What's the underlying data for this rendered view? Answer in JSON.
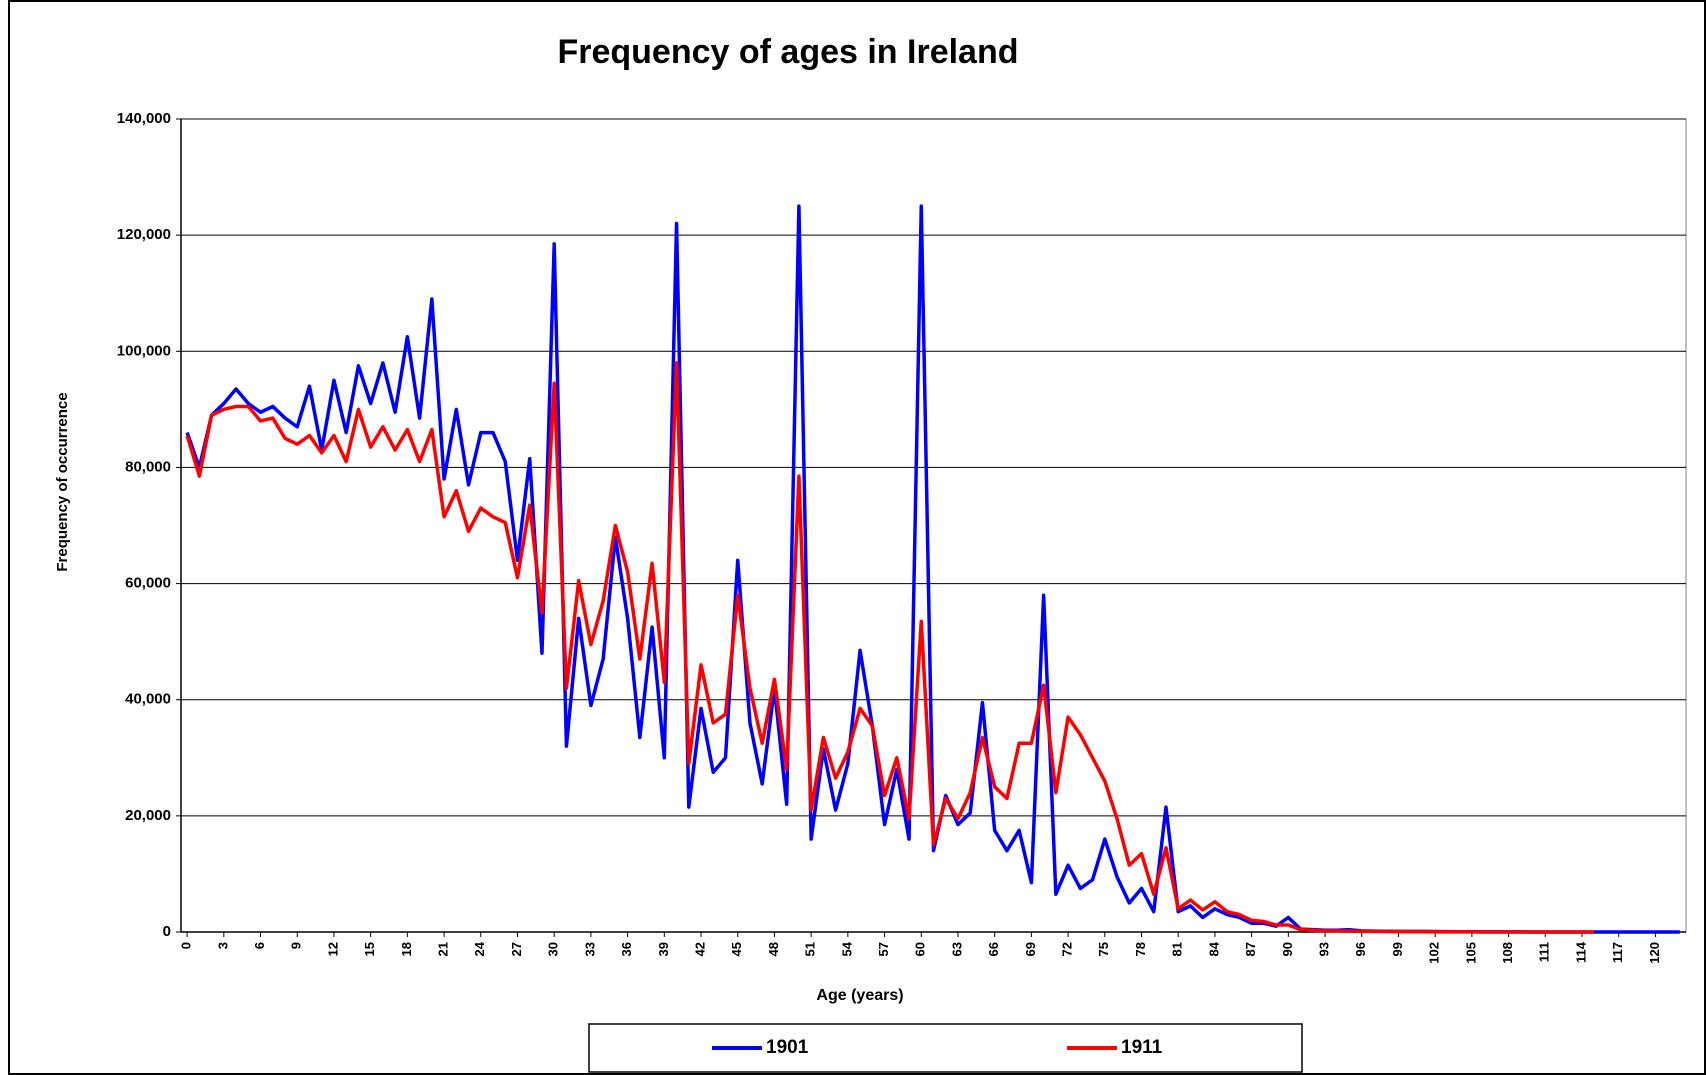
{
  "chart_data": {
    "type": "line",
    "title": "Frequency of ages in Ireland",
    "x_label": "Age (years)",
    "y_label": "Frequency of occurrence",
    "x": [
      0,
      1,
      2,
      3,
      4,
      5,
      6,
      7,
      8,
      9,
      10,
      11,
      12,
      13,
      14,
      15,
      16,
      17,
      18,
      19,
      20,
      21,
      22,
      23,
      24,
      25,
      26,
      27,
      28,
      29,
      30,
      31,
      32,
      33,
      34,
      35,
      36,
      37,
      38,
      39,
      40,
      41,
      42,
      43,
      44,
      45,
      46,
      47,
      48,
      49,
      50,
      51,
      52,
      53,
      54,
      55,
      56,
      57,
      58,
      59,
      60,
      61,
      62,
      63,
      64,
      65,
      66,
      67,
      68,
      69,
      70,
      71,
      72,
      73,
      74,
      75,
      76,
      77,
      78,
      79,
      80,
      81,
      82,
      83,
      84,
      85,
      86,
      87,
      88,
      89,
      90,
      91,
      92,
      93,
      94,
      95,
      96,
      97,
      98,
      99,
      100,
      101,
      102,
      103,
      104,
      105,
      106,
      107,
      108,
      109,
      110,
      111,
      112,
      113,
      114,
      115,
      116,
      117,
      118,
      119,
      120,
      121,
      122
    ],
    "xlim": [
      -0.5,
      122.5
    ],
    "xticks": [
      0,
      3,
      6,
      9,
      12,
      15,
      18,
      21,
      24,
      27,
      30,
      33,
      36,
      39,
      42,
      45,
      48,
      51,
      54,
      57,
      60,
      63,
      66,
      69,
      72,
      75,
      78,
      81,
      84,
      87,
      90,
      93,
      96,
      99,
      102,
      105,
      108,
      111,
      114,
      117,
      120
    ],
    "ylim": [
      0,
      140000
    ],
    "yticks": [
      0,
      {
        "value": 20000,
        "label": "20,000"
      },
      {
        "value": 40000,
        "label": "40,000"
      },
      {
        "value": 60000,
        "label": "60,000"
      },
      {
        "value": 80000,
        "label": "80,000"
      },
      {
        "value": 100000,
        "label": "100,000"
      },
      {
        "value": 120000,
        "label": "120,000"
      },
      {
        "value": 140000,
        "label": "140,000"
      }
    ],
    "grid": true,
    "legend": "bottom",
    "series": [
      {
        "name": "1901",
        "color": "#0000ff",
        "values": [
          86000,
          80000,
          89000,
          91000,
          93500,
          91000,
          89500,
          90500,
          88500,
          87000,
          94000,
          83000,
          95000,
          86000,
          97500,
          91000,
          98000,
          89500,
          102500,
          88500,
          109000,
          78000,
          90000,
          77000,
          86000,
          86000,
          81000,
          64000,
          81500,
          48000,
          118500,
          32000,
          54000,
          39000,
          47000,
          68000,
          54000,
          33500,
          52500,
          30000,
          122000,
          21500,
          38500,
          27500,
          30000,
          64000,
          36000,
          25500,
          42000,
          22000,
          125000,
          16000,
          31500,
          21000,
          29000,
          48500,
          35500,
          18500,
          28000,
          16000,
          125000,
          14000,
          23500,
          18500,
          20500,
          39500,
          17500,
          14000,
          17500,
          8500,
          58000,
          6500,
          11500,
          7500,
          9000,
          16000,
          9500,
          5000,
          7500,
          3500,
          21500,
          3500,
          4500,
          2500,
          4000,
          3000,
          2500,
          1500,
          1500,
          1000,
          2500,
          500,
          400,
          300,
          300,
          400,
          200,
          150,
          120,
          100,
          100,
          100,
          80,
          60,
          50,
          40,
          30,
          30,
          20,
          20,
          10,
          10,
          10,
          10,
          0,
          0,
          0,
          0,
          0,
          0,
          0,
          0,
          0
        ]
      },
      {
        "name": "1911",
        "color": "#ff0000",
        "values": [
          85500,
          78500,
          89000,
          90000,
          90500,
          90500,
          88000,
          88500,
          85000,
          84000,
          85500,
          82500,
          85500,
          81000,
          90000,
          83500,
          87000,
          83000,
          86500,
          81000,
          86500,
          71500,
          76000,
          69000,
          73000,
          71500,
          70500,
          61000,
          73500,
          55000,
          94500,
          42000,
          60500,
          49500,
          57000,
          70000,
          62000,
          47000,
          63500,
          43000,
          98000,
          29000,
          46000,
          36000,
          37500,
          58000,
          42000,
          32500,
          43500,
          28000,
          78500,
          21000,
          33500,
          26500,
          31000,
          38500,
          35500,
          23500,
          30000,
          19500,
          53500,
          15000,
          23000,
          19500,
          24000,
          33500,
          25000,
          23000,
          32500,
          32500,
          42500,
          24000,
          37000,
          34000,
          30000,
          26000,
          19500,
          11500,
          13500,
          6500,
          14500,
          4000,
          5500,
          3800,
          5200,
          3500,
          3000,
          2000,
          1800,
          1200,
          1200,
          400,
          300,
          200,
          200,
          150,
          100,
          100,
          80,
          60,
          50,
          40,
          30,
          30,
          20,
          20,
          10,
          10,
          10,
          10,
          0,
          0,
          0,
          0,
          0,
          0,
          null,
          null,
          null,
          null,
          null,
          null,
          null
        ]
      }
    ]
  }
}
